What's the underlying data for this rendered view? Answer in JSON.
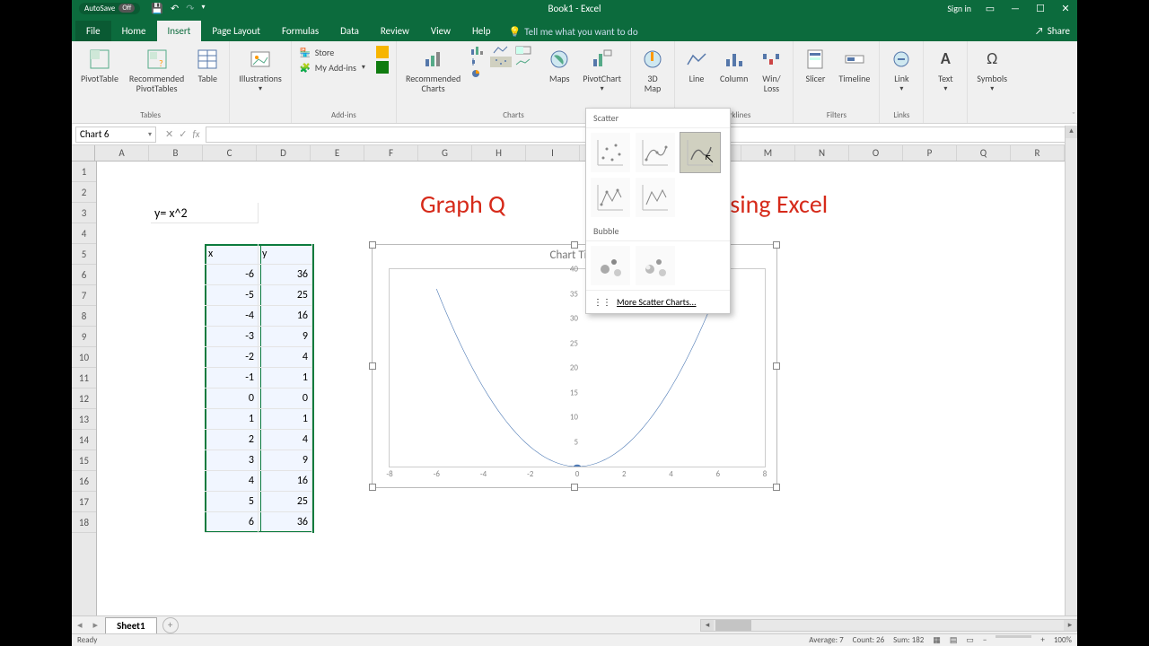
{
  "window": {
    "autosave": "AutoSave",
    "autosave_state": "Off",
    "title": "Book1 - Excel",
    "signin": "Sign in"
  },
  "tabs": {
    "file": "File",
    "home": "Home",
    "insert": "Insert",
    "pagelayout": "Page Layout",
    "formulas": "Formulas",
    "data": "Data",
    "review": "Review",
    "view": "View",
    "help": "Help",
    "tellme": "Tell me what you want to do",
    "share": "Share"
  },
  "ribbon": {
    "tables": {
      "label": "Tables",
      "pivot": "PivotTable",
      "rec": "Recommended\nPivotTables",
      "table": "Table"
    },
    "illus": {
      "label": "Illustrations",
      "btn": "Illustrations"
    },
    "addins": {
      "label": "Add-ins",
      "store": "Store",
      "myaddins": "My Add-ins"
    },
    "charts": {
      "label": "Charts",
      "rec": "Recommended\nCharts",
      "maps": "Maps",
      "pivotchart": "PivotChart"
    },
    "tours": {
      "label": "Tours",
      "map3d": "3D\nMap"
    },
    "spark": {
      "label": "Sparklines",
      "line": "Line",
      "col": "Column",
      "wl": "Win/\nLoss"
    },
    "filters": {
      "label": "Filters",
      "slicer": "Slicer",
      "timeline": "Timeline"
    },
    "links": {
      "label": "Links",
      "link": "Link"
    },
    "text": {
      "btn": "Text"
    },
    "symbols": {
      "btn": "Symbols"
    }
  },
  "dropdown": {
    "scatter": "Scatter",
    "bubble": "Bubble",
    "more": "More Scatter Charts..."
  },
  "namebox": "Chart 6",
  "columns": [
    "A",
    "B",
    "C",
    "D",
    "E",
    "F",
    "G",
    "H",
    "I",
    "J",
    "K",
    "L",
    "M",
    "N",
    "O",
    "P",
    "Q",
    "R"
  ],
  "rows": [
    "1",
    "2",
    "3",
    "4",
    "5",
    "6",
    "7",
    "8",
    "9",
    "10",
    "11",
    "12",
    "13",
    "14",
    "15",
    "16",
    "17",
    "18"
  ],
  "cells": {
    "B3": "y= x^2",
    "C5": "x",
    "D5": "y",
    "C6": "-6",
    "D6": "36",
    "C7": "-5",
    "D7": "25",
    "C8": "-4",
    "D8": "16",
    "C9": "-3",
    "D9": "9",
    "C10": "-2",
    "D10": "4",
    "C11": "-1",
    "D11": "1",
    "C12": "0",
    "D12": "0",
    "C13": "1",
    "D13": "1",
    "C14": "2",
    "D14": "4",
    "C15": "3",
    "D15": "9",
    "C16": "4",
    "D16": "16",
    "C17": "5",
    "D17": "25",
    "C18": "6",
    "D18": "36"
  },
  "title_parts": {
    "left": "Graph Q",
    "right": "ation using Excel"
  },
  "chart": {
    "title": "Chart Title",
    "type": "scatter-smooth",
    "xlim": [
      -8,
      8
    ],
    "ylim": [
      0,
      40
    ],
    "xticks": [
      -8,
      -6,
      -4,
      -2,
      0,
      2,
      4,
      6,
      8
    ],
    "yticks": [
      5,
      10,
      15,
      20,
      25,
      30,
      35,
      40
    ],
    "points": [
      [
        -6,
        36
      ],
      [
        -5,
        25
      ],
      [
        -4,
        16
      ],
      [
        -3,
        9
      ],
      [
        -2,
        4
      ],
      [
        -1,
        1
      ],
      [
        0,
        0
      ],
      [
        1,
        1
      ],
      [
        2,
        4
      ],
      [
        3,
        9
      ],
      [
        4,
        16
      ],
      [
        5,
        25
      ],
      [
        6,
        36
      ]
    ],
    "line_color": "#4e7ab5",
    "origin_marker": "#4e7ab5"
  },
  "sheet_tab": "Sheet1",
  "status": {
    "ready": "Ready",
    "avg": "Average: 7",
    "count": "Count: 26",
    "sum": "Sum: 182",
    "zoom": "100%"
  }
}
